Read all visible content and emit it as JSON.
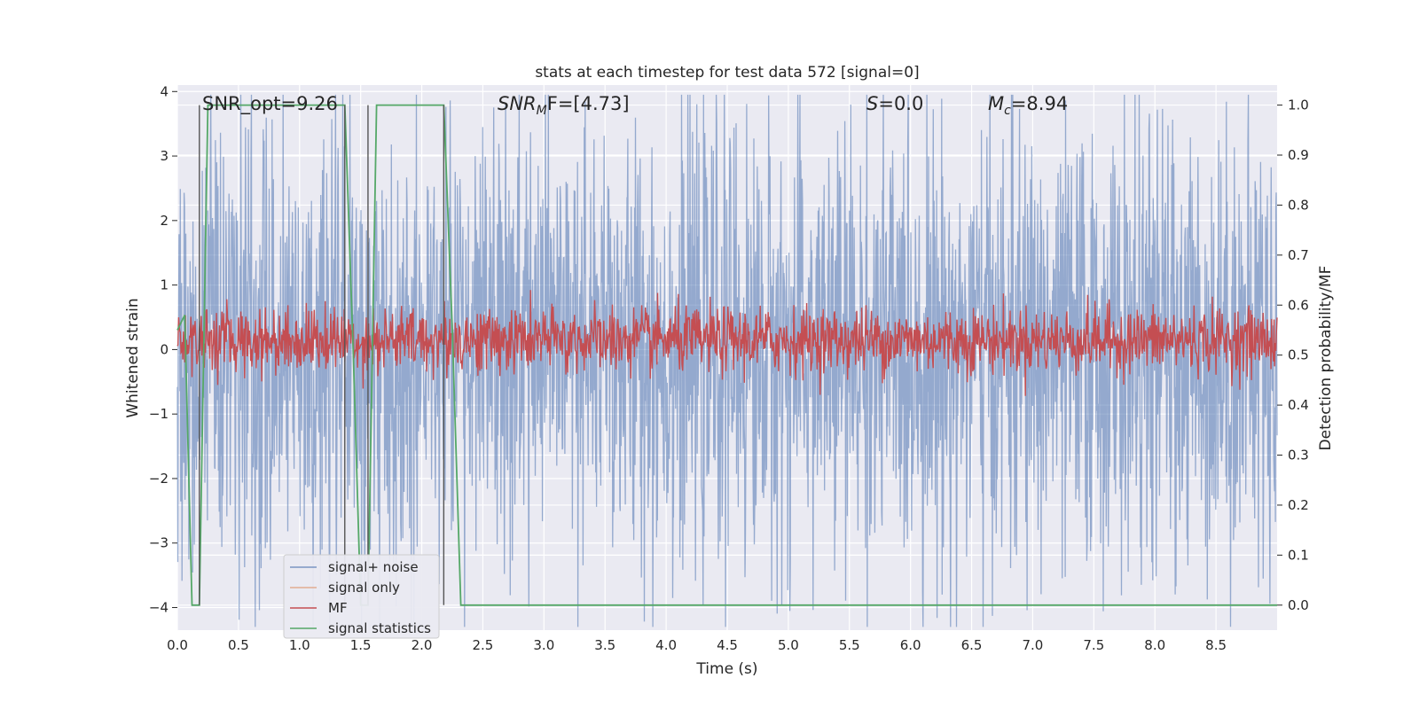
{
  "chart_data": {
    "type": "line",
    "title": "stats at each timestep for test data 572 [signal=0]",
    "xlabel": "Time (s)",
    "ylabel": "Whitened strain",
    "y2label": "Detection probability/MF",
    "xlim": [
      0.0,
      9.0
    ],
    "ylim": [
      -4.35,
      4.1
    ],
    "y2lim": [
      -0.05,
      1.04
    ],
    "xticks": [
      "0.0",
      "0.5",
      "1.0",
      "1.5",
      "2.0",
      "2.5",
      "3.0",
      "3.5",
      "4.0",
      "4.5",
      "5.0",
      "5.5",
      "6.0",
      "6.5",
      "7.0",
      "7.5",
      "8.0",
      "8.5"
    ],
    "yticks": [
      "4",
      "3",
      "2",
      "1",
      "0",
      "−1",
      "−2",
      "−3",
      "−4"
    ],
    "y2ticks": [
      "1.0",
      "0.9",
      "0.8",
      "0.7",
      "0.6",
      "0.5",
      "0.4",
      "0.3",
      "0.2",
      "0.1",
      "0.0"
    ],
    "grid": true,
    "legend_position": "lower-left",
    "annotations": {
      "snr_opt": "SNR_opt=9.26",
      "snr_mf_base": "SNR",
      "snr_mf_sub": "M",
      "snr_mf_rest": "F=[4.73]",
      "s_stat_var": "S",
      "s_stat_rest": "=0.0",
      "mc_var": "M",
      "mc_sub": "c",
      "mc_rest": "=8.94"
    },
    "series": [
      {
        "name": "signal+ noise",
        "color": "#4c72b0",
        "axis": "left",
        "kind": "noise",
        "amplitude_approx": 3.5
      },
      {
        "name": "signal only",
        "color": "#dd8452",
        "axis": "left",
        "kind": "flat",
        "value": 0
      },
      {
        "name": "MF",
        "color": "#c44e52",
        "axis": "right",
        "kind": "noise",
        "center": 0.53,
        "amplitude_approx": 0.06
      },
      {
        "name": "signal statistics",
        "color": "#55a868",
        "axis": "right",
        "kind": "step",
        "x": [
          0.0,
          0.06,
          0.12,
          0.18,
          0.25,
          1.37,
          1.44,
          1.5,
          1.56,
          1.63,
          2.18,
          2.25,
          2.32,
          9.0
        ],
        "y": [
          0.55,
          0.58,
          0.0,
          0.0,
          1.0,
          1.0,
          0.5,
          0.0,
          0.0,
          1.0,
          1.0,
          0.55,
          0.0,
          0.0
        ]
      }
    ],
    "vlines_x": [
      0.18,
      1.37,
      1.56,
      2.18
    ]
  },
  "colors": {
    "plot_background": "#eaeaf2",
    "grid": "#ffffff",
    "vline": "#555555"
  }
}
